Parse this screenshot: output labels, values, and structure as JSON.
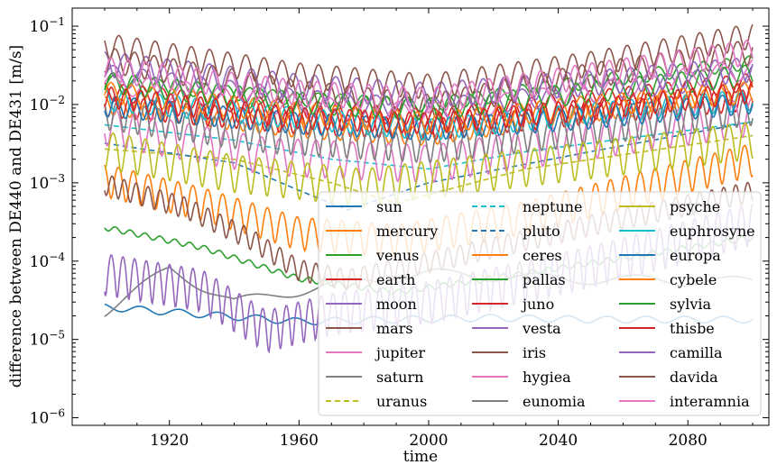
{
  "chart_data": {
    "type": "line",
    "xlabel": "time",
    "ylabel": "difference between DE440 and DE431 [m/s]",
    "xlim": [
      1890,
      2105
    ],
    "ylim": [
      8e-07,
      0.17
    ],
    "yscale": "log",
    "xticks": [
      1920,
      1960,
      2000,
      2040,
      2080
    ],
    "yticks": [
      {
        "value": 1e-06,
        "label": "10−6"
      },
      {
        "value": 1e-05,
        "label": "10−5"
      },
      {
        "value": 0.0001,
        "label": "10−4"
      },
      {
        "value": 0.001,
        "label": "10−3"
      },
      {
        "value": 0.01,
        "label": "10−2"
      },
      {
        "value": 0.1,
        "label": "10−1"
      }
    ],
    "grid": false,
    "legend_position": "lower-right",
    "series": [
      {
        "name": "sun",
        "color": "#1f77b4",
        "dash": "solid",
        "anchors": [
          [
            1900,
            2.6e-05
          ],
          [
            1930,
            2.1e-05
          ],
          [
            1960,
            1.7e-05
          ],
          [
            1990,
            1.8e-05
          ],
          [
            2020,
            1.9e-05
          ],
          [
            2050,
            1.8e-05
          ],
          [
            2100,
            1.8e-05
          ]
        ],
        "amp": 0.1,
        "period": 12
      },
      {
        "name": "mercury",
        "color": "#ff7f0e",
        "dash": "solid",
        "anchors": [
          [
            1900,
            0.01
          ],
          [
            1960,
            0.005
          ],
          [
            2000,
            0.004
          ],
          [
            2050,
            0.008
          ],
          [
            2100,
            0.015
          ]
        ],
        "amp": 0.25,
        "period": 5
      },
      {
        "name": "venus",
        "color": "#2ca02c",
        "dash": "solid",
        "anchors": [
          [
            1900,
            0.02
          ],
          [
            1960,
            0.012
          ],
          [
            2000,
            0.01
          ],
          [
            2050,
            0.02
          ],
          [
            2100,
            0.035
          ]
        ],
        "amp": 0.2,
        "period": 7
      },
      {
        "name": "earth",
        "color": "#d62728",
        "dash": "solid",
        "anchors": [
          [
            1900,
            0.015
          ],
          [
            1960,
            0.009
          ],
          [
            2000,
            0.007
          ],
          [
            2050,
            0.012
          ],
          [
            2100,
            0.02
          ]
        ],
        "amp": 0.25,
        "period": 6
      },
      {
        "name": "moon",
        "color": "#9467bd",
        "dash": "solid",
        "anchors": [
          [
            1900,
            0.025
          ],
          [
            1960,
            0.012
          ],
          [
            2000,
            0.009
          ],
          [
            2050,
            0.015
          ],
          [
            2100,
            0.025
          ]
        ],
        "amp": 0.3,
        "period": 9
      },
      {
        "name": "mars",
        "color": "#8c564b",
        "dash": "solid",
        "anchors": [
          [
            1900,
            0.04
          ],
          [
            1960,
            0.015
          ],
          [
            2000,
            0.01
          ],
          [
            2050,
            0.025
          ],
          [
            2100,
            0.05
          ]
        ],
        "amp": 0.35,
        "period": 6
      },
      {
        "name": "jupiter",
        "color": "#e377c2",
        "dash": "solid",
        "anchors": [
          [
            1900,
            0.02
          ],
          [
            1960,
            0.01
          ],
          [
            2000,
            0.008
          ],
          [
            2050,
            0.015
          ],
          [
            2100,
            0.03
          ]
        ],
        "amp": 0.3,
        "period": 11
      },
      {
        "name": "saturn",
        "color": "#7f7f7f",
        "dash": "solid",
        "anchors": [
          [
            1900,
            2.3e-05
          ],
          [
            1920,
            8e-05
          ],
          [
            1940,
            3e-05
          ],
          [
            1970,
            5e-05
          ],
          [
            2000,
            7e-05
          ],
          [
            2040,
            6e-05
          ],
          [
            2100,
            5.5e-05
          ]
        ],
        "amp": 0.15,
        "period": 30
      },
      {
        "name": "uranus",
        "color": "#bcbd22",
        "dash": "dashed",
        "anchors": [
          [
            1900,
            0.0027
          ],
          [
            1940,
            0.002
          ],
          [
            1970,
            0.001
          ],
          [
            1990,
            0.00055
          ],
          [
            2030,
            0.0015
          ],
          [
            2100,
            0.004
          ]
        ],
        "amp": 0.0,
        "period": 84
      },
      {
        "name": "neptune",
        "color": "#17becf",
        "dash": "dashed",
        "anchors": [
          [
            1900,
            0.0055
          ],
          [
            1940,
            0.0035
          ],
          [
            1970,
            0.002
          ],
          [
            2000,
            0.0015
          ],
          [
            2030,
            0.0025
          ],
          [
            2100,
            0.006
          ]
        ],
        "amp": 0.0,
        "period": 165
      },
      {
        "name": "pluto",
        "color": "#1f77b4",
        "dash": "dashed",
        "anchors": [
          [
            1900,
            0.0032
          ],
          [
            1940,
            0.0018
          ],
          [
            1960,
            0.0008
          ],
          [
            1975,
            0.00045
          ],
          [
            2000,
            0.001
          ],
          [
            2050,
            0.0025
          ],
          [
            2100,
            0.006
          ]
        ],
        "amp": 0.0,
        "period": 248
      },
      {
        "name": "ceres",
        "color": "#ff7f0e",
        "dash": "solid",
        "anchors": [
          [
            1900,
            0.0012
          ],
          [
            1930,
            0.0006
          ],
          [
            1960,
            0.00025
          ],
          [
            1990,
            0.0002
          ],
          [
            2030,
            0.0004
          ],
          [
            2100,
            0.0022
          ]
        ],
        "amp": 0.45,
        "period": 4.6
      },
      {
        "name": "pallas",
        "color": "#2ca02c",
        "dash": "solid",
        "anchors": [
          [
            1900,
            0.00027
          ],
          [
            1930,
            0.00015
          ],
          [
            1960,
            6e-05
          ],
          [
            1990,
            4e-05
          ],
          [
            2030,
            7e-05
          ],
          [
            2100,
            0.0002
          ]
        ],
        "amp": 0.08,
        "period": 4.6
      },
      {
        "name": "juno",
        "color": "#d62728",
        "dash": "solid",
        "anchors": [
          [
            1900,
            0.01
          ],
          [
            1960,
            0.006
          ],
          [
            2000,
            0.005
          ],
          [
            2050,
            0.008
          ],
          [
            2100,
            0.012
          ]
        ],
        "amp": 0.3,
        "period": 4.4
      },
      {
        "name": "vesta",
        "color": "#9467bd",
        "dash": "solid",
        "anchors": [
          [
            1900,
            8e-05
          ],
          [
            1930,
            5e-05
          ],
          [
            1950,
            1.5e-05
          ],
          [
            1970,
            2.5e-05
          ],
          [
            2000,
            3.5e-05
          ],
          [
            2050,
            0.0001
          ],
          [
            2100,
            0.00035
          ]
        ],
        "amp": 0.55,
        "period": 3.6
      },
      {
        "name": "iris",
        "color": "#8c564b",
        "dash": "solid",
        "anchors": [
          [
            1900,
            0.001
          ],
          [
            1925,
            0.0005
          ],
          [
            1945,
            0.0002
          ],
          [
            1960,
            8e-05
          ],
          [
            1975,
            6e-05
          ],
          [
            2000,
            0.0001
          ],
          [
            2050,
            0.0003
          ],
          [
            2100,
            0.0008
          ]
        ],
        "amp": 0.3,
        "period": 3.7
      },
      {
        "name": "hygiea",
        "color": "#e377c2",
        "dash": "solid",
        "anchors": [
          [
            1900,
            0.006
          ],
          [
            1950,
            0.0025
          ],
          [
            2000,
            0.002
          ],
          [
            2050,
            0.004
          ],
          [
            2100,
            0.008
          ]
        ],
        "amp": 0.5,
        "period": 5.6
      },
      {
        "name": "eunomia",
        "color": "#7f7f7f",
        "dash": "solid",
        "anchors": [
          [
            1900,
            0.008
          ],
          [
            1950,
            0.004
          ],
          [
            2000,
            0.003
          ],
          [
            2050,
            0.005
          ],
          [
            2100,
            0.009
          ]
        ],
        "amp": 0.4,
        "period": 4.3
      },
      {
        "name": "psyche",
        "color": "#bcbd22",
        "dash": "solid",
        "anchors": [
          [
            1900,
            0.003
          ],
          [
            1940,
            0.0015
          ],
          [
            1980,
            0.001
          ],
          [
            2040,
            0.002
          ],
          [
            2100,
            0.004
          ]
        ],
        "amp": 0.5,
        "period": 5.0
      },
      {
        "name": "euphrosyne",
        "color": "#17becf",
        "dash": "solid",
        "anchors": [
          [
            1900,
            0.012
          ],
          [
            1960,
            0.007
          ],
          [
            2000,
            0.005
          ],
          [
            2050,
            0.008
          ],
          [
            2100,
            0.012
          ]
        ],
        "amp": 0.3,
        "period": 5.6
      },
      {
        "name": "europa",
        "color": "#1f77b4",
        "dash": "solid",
        "anchors": [
          [
            1900,
            0.01
          ],
          [
            1960,
            0.006
          ],
          [
            2000,
            0.005
          ],
          [
            2050,
            0.007
          ],
          [
            2100,
            0.011
          ]
        ],
        "amp": 0.3,
        "period": 5.5
      },
      {
        "name": "cybele",
        "color": "#ff7f0e",
        "dash": "solid",
        "anchors": [
          [
            1900,
            0.015
          ],
          [
            1960,
            0.008
          ],
          [
            2000,
            0.006
          ],
          [
            2050,
            0.01
          ],
          [
            2100,
            0.015
          ]
        ],
        "amp": 0.3,
        "period": 6.3
      },
      {
        "name": "sylvia",
        "color": "#2ca02c",
        "dash": "solid",
        "anchors": [
          [
            1900,
            0.02
          ],
          [
            1960,
            0.011
          ],
          [
            2000,
            0.009
          ],
          [
            2050,
            0.015
          ],
          [
            2100,
            0.025
          ]
        ],
        "amp": 0.3,
        "period": 6.5
      },
      {
        "name": "thisbe",
        "color": "#d62728",
        "dash": "solid",
        "anchors": [
          [
            1900,
            0.013
          ],
          [
            1960,
            0.007
          ],
          [
            2000,
            0.006
          ],
          [
            2050,
            0.009
          ],
          [
            2100,
            0.015
          ]
        ],
        "amp": 0.3,
        "period": 4.6
      },
      {
        "name": "camilla",
        "color": "#9467bd",
        "dash": "solid",
        "anchors": [
          [
            1900,
            0.035
          ],
          [
            1960,
            0.018
          ],
          [
            2000,
            0.014
          ],
          [
            2050,
            0.02
          ],
          [
            2100,
            0.03
          ]
        ],
        "amp": 0.35,
        "period": 6.5
      },
      {
        "name": "davida",
        "color": "#8c564b",
        "dash": "solid",
        "anchors": [
          [
            1900,
            0.06
          ],
          [
            1960,
            0.025
          ],
          [
            2000,
            0.018
          ],
          [
            2050,
            0.035
          ],
          [
            2100,
            0.08
          ]
        ],
        "amp": 0.35,
        "period": 5.6
      },
      {
        "name": "interamnia",
        "color": "#e377c2",
        "dash": "solid",
        "anchors": [
          [
            1900,
            0.03
          ],
          [
            1960,
            0.015
          ],
          [
            2000,
            0.012
          ],
          [
            2050,
            0.025
          ],
          [
            2100,
            0.05
          ]
        ],
        "amp": 0.35,
        "period": 5.3
      }
    ]
  }
}
